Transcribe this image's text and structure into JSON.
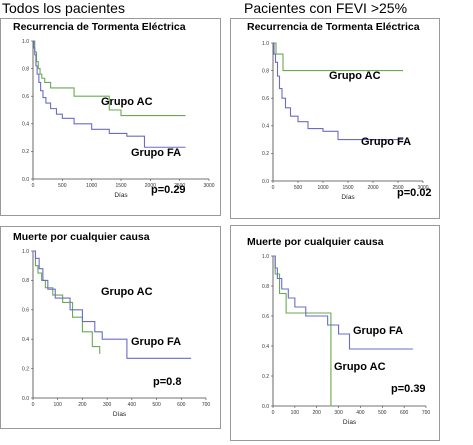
{
  "column_titles": [
    "Todos los pacientes",
    "Pacientes con FEVI >25%"
  ],
  "colors": {
    "grupo_ac": "#6aaa52",
    "grupo_fa": "#6c6cc8"
  },
  "chart_data": [
    {
      "type": "line",
      "title": "Recurrencia de Tormenta Eléctrica",
      "xlabel": "Días",
      "ylabel": "",
      "xlim": [
        0,
        3000
      ],
      "ylim": [
        0,
        1.0
      ],
      "xticks": [
        0,
        500,
        1000,
        1500,
        2000,
        2500,
        3000
      ],
      "yticks": [
        "0.0",
        "0.2",
        "0.4",
        "0.6",
        "0.8",
        "1.0"
      ],
      "pvalue": "p=0.29",
      "series": [
        {
          "name": "Grupo AC",
          "color": "#6aaa52",
          "x": [
            0,
            30,
            60,
            90,
            120,
            150,
            200,
            300,
            500,
            700,
            1000,
            1300,
            1500,
            1900,
            2600
          ],
          "y": [
            1.0,
            0.92,
            0.85,
            0.8,
            0.76,
            0.73,
            0.7,
            0.66,
            0.66,
            0.6,
            0.6,
            0.5,
            0.46,
            0.46,
            0.46
          ]
        },
        {
          "name": "Grupo FA",
          "color": "#6c6cc8",
          "x": [
            0,
            15,
            30,
            50,
            70,
            100,
            130,
            170,
            220,
            300,
            400,
            500,
            700,
            1000,
            1300,
            1600,
            1900,
            2600
          ],
          "y": [
            1.0,
            0.95,
            0.9,
            0.82,
            0.76,
            0.7,
            0.64,
            0.59,
            0.55,
            0.51,
            0.47,
            0.44,
            0.4,
            0.36,
            0.33,
            0.31,
            0.23,
            0.23
          ]
        }
      ]
    },
    {
      "type": "line",
      "title": "Recurrencia de Tormenta Eléctrica",
      "xlabel": "Días",
      "ylabel": "",
      "xlim": [
        0,
        3000
      ],
      "ylim": [
        0,
        1.0
      ],
      "xticks": [
        0,
        500,
        1000,
        1500,
        2000,
        2500,
        3000
      ],
      "yticks": [
        "0.0",
        "0.2",
        "0.4",
        "0.6",
        "0.8",
        "1.0"
      ],
      "pvalue": "p=0.02",
      "series": [
        {
          "name": "Grupo AC",
          "color": "#6aaa52",
          "x": [
            0,
            60,
            200,
            500,
            2600
          ],
          "y": [
            1.0,
            0.92,
            0.8,
            0.8,
            0.8
          ]
        },
        {
          "name": "Grupo FA",
          "color": "#6c6cc8",
          "x": [
            0,
            20,
            50,
            90,
            130,
            180,
            250,
            350,
            500,
            700,
            1000,
            1300,
            1600,
            2600
          ],
          "y": [
            1.0,
            0.92,
            0.86,
            0.76,
            0.67,
            0.6,
            0.53,
            0.47,
            0.43,
            0.38,
            0.36,
            0.3,
            0.3,
            0.3
          ]
        }
      ]
    },
    {
      "type": "line",
      "title": "Muerte por cualquier causa",
      "xlabel": "Días",
      "ylabel": "",
      "xlim": [
        0,
        700
      ],
      "ylim": [
        0,
        1.0
      ],
      "xticks": [
        0,
        100,
        200,
        300,
        400,
        500,
        600,
        700
      ],
      "yticks": [
        "0.0",
        "0.2",
        "0.4",
        "0.6",
        "0.8",
        "1.0"
      ],
      "pvalue": "p=0.8",
      "series": [
        {
          "name": "Grupo AC",
          "color": "#6aaa52",
          "x": [
            0,
            10,
            20,
            35,
            50,
            80,
            120,
            160,
            200,
            240,
            270
          ],
          "y": [
            1.0,
            0.9,
            0.85,
            0.8,
            0.75,
            0.7,
            0.65,
            0.55,
            0.45,
            0.35,
            0.3
          ]
        },
        {
          "name": "Grupo FA",
          "color": "#6c6cc8",
          "x": [
            0,
            10,
            25,
            40,
            60,
            90,
            150,
            200,
            250,
            280,
            380,
            640
          ],
          "y": [
            1.0,
            0.95,
            0.88,
            0.8,
            0.74,
            0.68,
            0.6,
            0.52,
            0.45,
            0.4,
            0.27,
            0.27
          ]
        }
      ]
    },
    {
      "type": "line",
      "title": "Muerte por cualquier causa",
      "xlabel": "Días",
      "ylabel": "",
      "xlim": [
        0,
        700
      ],
      "ylim": [
        0,
        1.0
      ],
      "xticks": [
        0,
        100,
        200,
        300,
        400,
        500,
        600,
        700
      ],
      "yticks": [
        "0.0",
        "0.2",
        "0.4",
        "0.6",
        "0.8",
        "1.0"
      ],
      "pvalue": "p=0.39",
      "series": [
        {
          "name": "Grupo AC",
          "color": "#6aaa52",
          "x": [
            0,
            10,
            30,
            60,
            260,
            265,
            260
          ],
          "y": [
            1.0,
            0.88,
            0.75,
            0.62,
            0.62,
            0.0,
            0.0
          ]
        },
        {
          "name": "Grupo FA",
          "color": "#6c6cc8",
          "x": [
            0,
            10,
            20,
            40,
            70,
            100,
            150,
            250,
            300,
            350,
            640
          ],
          "y": [
            1.0,
            0.92,
            0.85,
            0.78,
            0.72,
            0.66,
            0.6,
            0.54,
            0.48,
            0.38,
            0.38
          ]
        }
      ]
    }
  ]
}
